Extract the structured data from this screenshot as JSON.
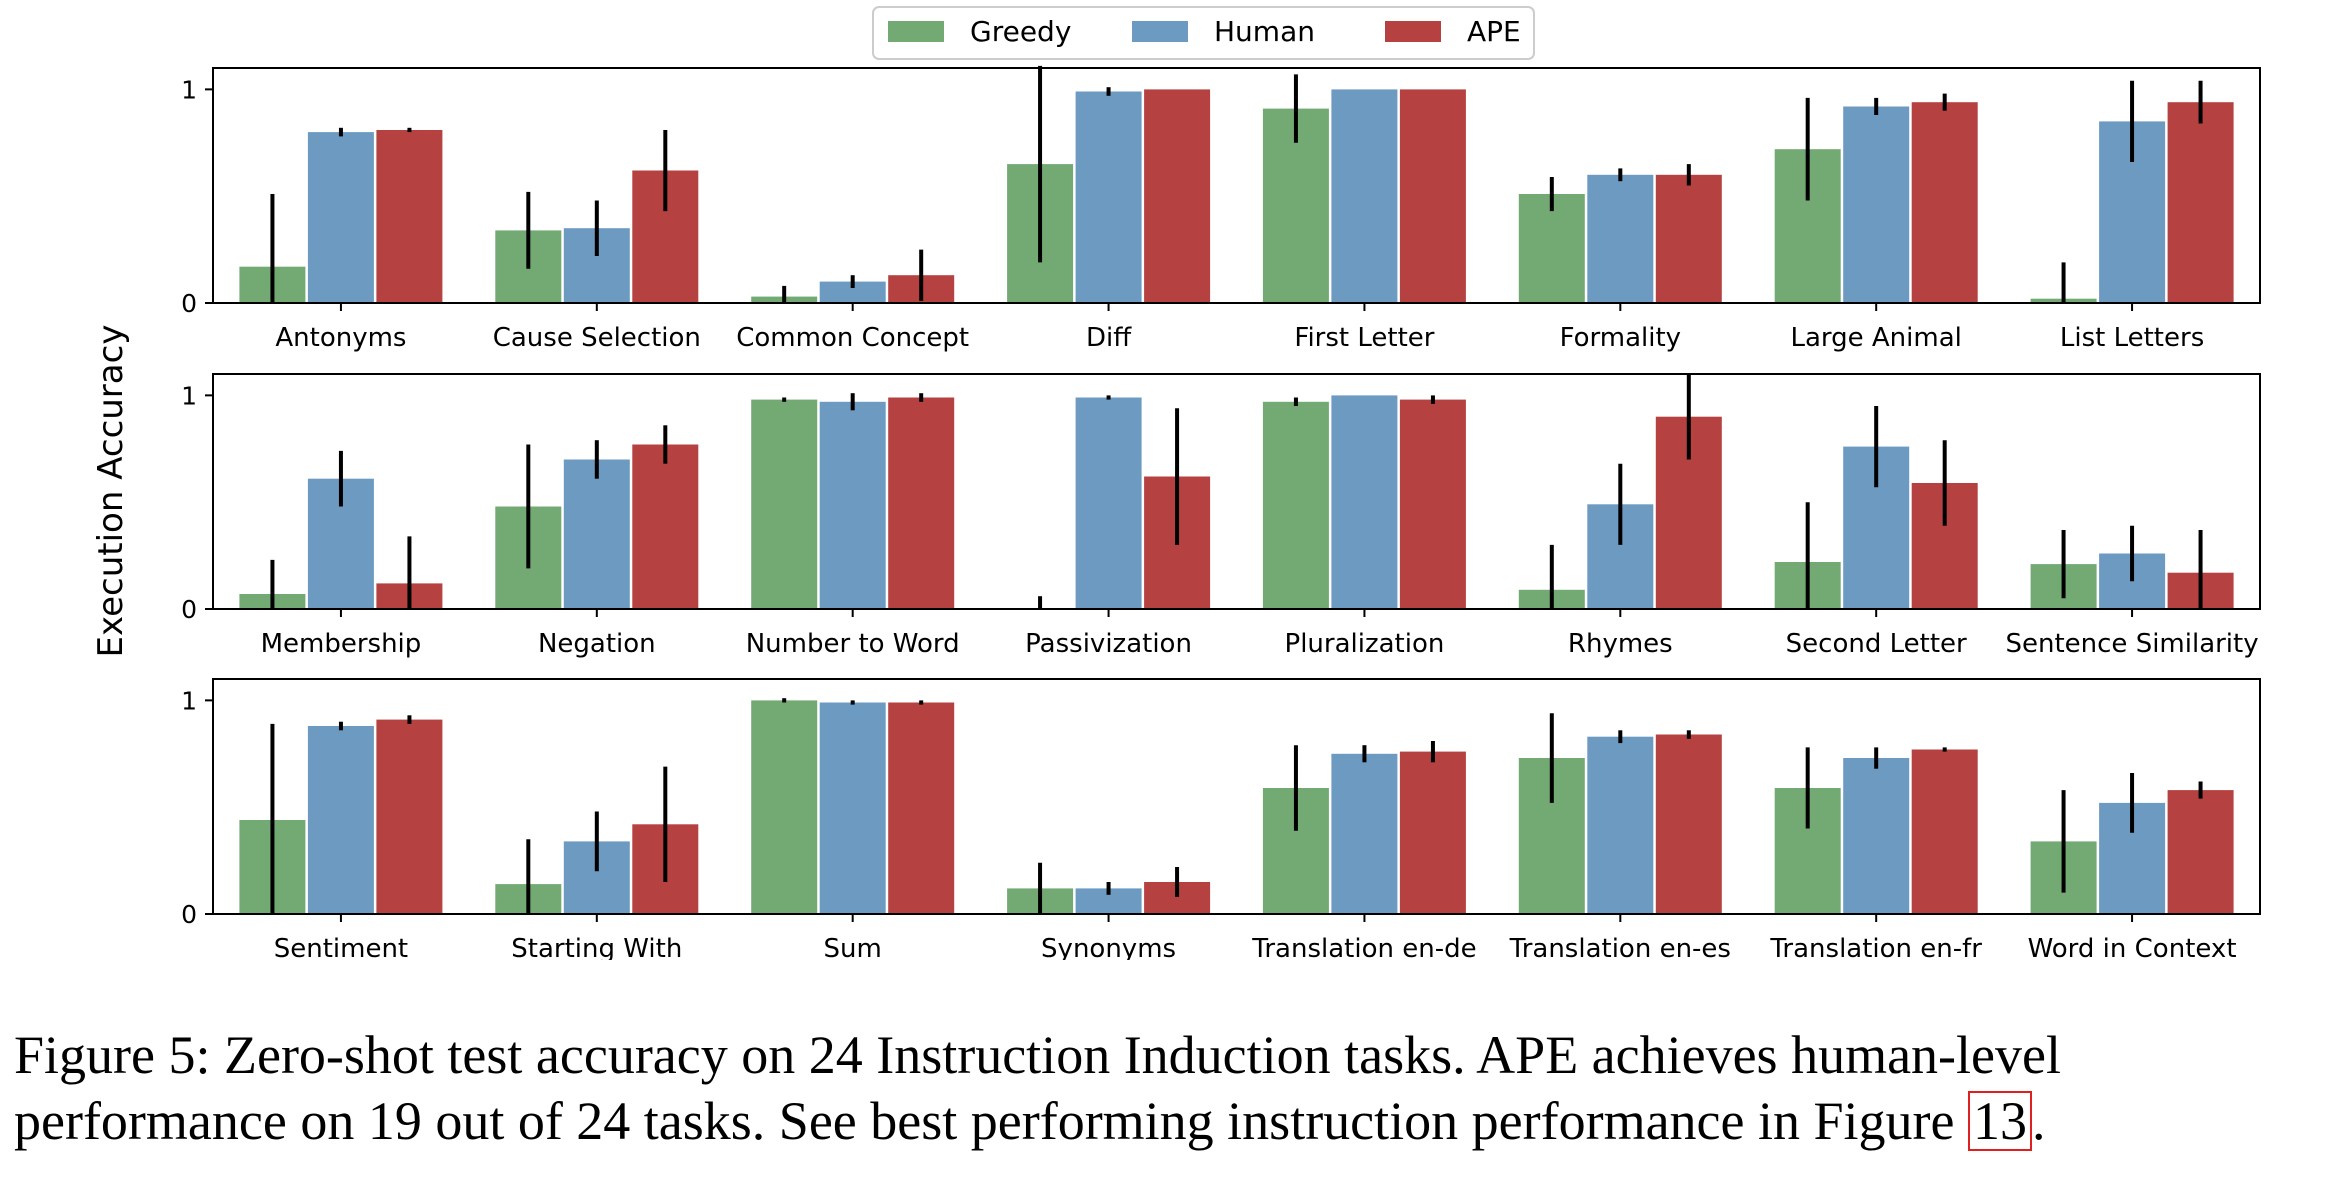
{
  "chart_data": {
    "type": "bar",
    "ylabel": "Execution Accuracy",
    "ylim": [
      0,
      1.1
    ],
    "yticks": [
      0,
      1
    ],
    "legend": {
      "placement": "top-center",
      "entries": [
        "Greedy",
        "Human",
        "APE"
      ]
    },
    "colors": {
      "Greedy": "#73a972",
      "Human": "#6d9ac0",
      "APE": "#b54141"
    },
    "panels": [
      {
        "categories": [
          "Antonyms",
          "Cause Selection",
          "Common Concept",
          "Diff",
          "First Letter",
          "Formality",
          "Large Animal",
          "List Letters"
        ],
        "series": [
          {
            "name": "Greedy",
            "values": [
              0.17,
              0.34,
              0.03,
              0.65,
              0.91,
              0.51,
              0.72,
              0.02
            ],
            "errors": [
              0.34,
              0.18,
              0.05,
              0.46,
              0.16,
              0.08,
              0.24,
              0.17
            ]
          },
          {
            "name": "Human",
            "values": [
              0.8,
              0.35,
              0.1,
              0.99,
              1.0,
              0.6,
              0.92,
              0.85
            ],
            "errors": [
              0.02,
              0.13,
              0.03,
              0.02,
              0.0,
              0.03,
              0.04,
              0.19
            ]
          },
          {
            "name": "APE",
            "values": [
              0.81,
              0.62,
              0.13,
              1.0,
              1.0,
              0.6,
              0.94,
              0.94
            ],
            "errors": [
              0.01,
              0.19,
              0.12,
              0.0,
              0.0,
              0.05,
              0.04,
              0.1
            ]
          }
        ]
      },
      {
        "categories": [
          "Membership",
          "Negation",
          "Number to Word",
          "Passivization",
          "Pluralization",
          "Rhymes",
          "Second Letter",
          "Sentence Similarity"
        ],
        "series": [
          {
            "name": "Greedy",
            "values": [
              0.07,
              0.48,
              0.98,
              0.0,
              0.97,
              0.09,
              0.22,
              0.21
            ],
            "errors": [
              0.16,
              0.29,
              0.01,
              0.06,
              0.02,
              0.21,
              0.28,
              0.16
            ]
          },
          {
            "name": "Human",
            "values": [
              0.61,
              0.7,
              0.97,
              0.99,
              1.0,
              0.49,
              0.76,
              0.26
            ],
            "errors": [
              0.13,
              0.09,
              0.04,
              0.01,
              0.0,
              0.19,
              0.19,
              0.13
            ]
          },
          {
            "name": "APE",
            "values": [
              0.12,
              0.77,
              0.99,
              0.62,
              0.98,
              0.9,
              0.59,
              0.17
            ],
            "errors": [
              0.22,
              0.09,
              0.02,
              0.32,
              0.02,
              0.2,
              0.2,
              0.2
            ]
          }
        ]
      },
      {
        "categories": [
          "Sentiment",
          "Starting With",
          "Sum",
          "Synonyms",
          "Translation en-de",
          "Translation en-es",
          "Translation en-fr",
          "Word in Context"
        ],
        "series": [
          {
            "name": "Greedy",
            "values": [
              0.44,
              0.14,
              1.0,
              0.12,
              0.59,
              0.73,
              0.59,
              0.34
            ],
            "errors": [
              0.45,
              0.21,
              0.01,
              0.12,
              0.2,
              0.21,
              0.19,
              0.24
            ]
          },
          {
            "name": "Human",
            "values": [
              0.88,
              0.34,
              0.99,
              0.12,
              0.75,
              0.83,
              0.73,
              0.52
            ],
            "errors": [
              0.02,
              0.14,
              0.01,
              0.03,
              0.04,
              0.03,
              0.05,
              0.14
            ]
          },
          {
            "name": "APE",
            "values": [
              0.91,
              0.42,
              0.99,
              0.15,
              0.76,
              0.84,
              0.77,
              0.58
            ],
            "errors": [
              0.02,
              0.27,
              0.01,
              0.07,
              0.05,
              0.02,
              0.01,
              0.04
            ]
          }
        ]
      }
    ]
  },
  "caption": {
    "text": "Figure 5: Zero-shot test accuracy on 24 Instruction Induction tasks.  APE achieves human-level performance on 19 out of 24 tasks. See best performing instruction performance in Figure ",
    "ref": "13",
    "end": "."
  }
}
